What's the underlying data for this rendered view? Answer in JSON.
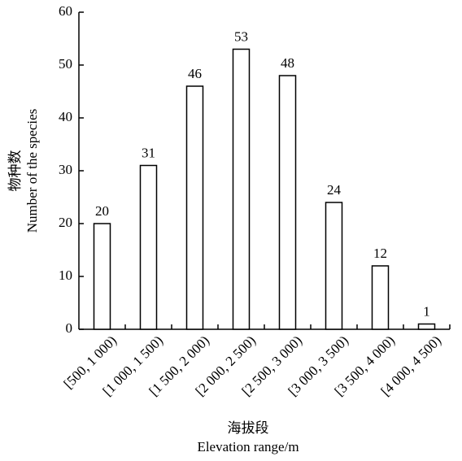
{
  "chart_data": {
    "type": "bar",
    "y_label_cn": "物种数",
    "y_label": "Number of the species",
    "x_label_cn": "海拔段",
    "x_label": "Elevation range/m",
    "categories": [
      "[500, 1 000)",
      "[1 000, 1 500)",
      "[1 500, 2 000)",
      "[2 000, 2 500)",
      "[2 500, 3 000)",
      "[3 000, 3 500)",
      "[3 500, 4 000)",
      "[4 000, 4 500)"
    ],
    "values": [
      20,
      31,
      46,
      53,
      48,
      24,
      12,
      1
    ],
    "color": "#ffffff",
    "ylim": [
      0,
      60
    ],
    "yticks": [
      0,
      10,
      20,
      30,
      40,
      50,
      60
    ]
  }
}
